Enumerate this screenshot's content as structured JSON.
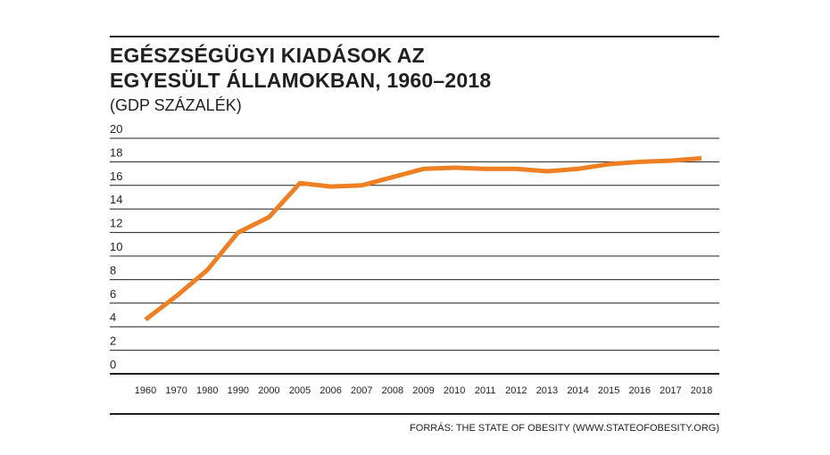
{
  "chart_data": {
    "type": "line",
    "title_lines": [
      "EGÉSZSÉGÜGYI KIADÁSOK AZ",
      "EGYESÜLT ÁLLAMOKBAN, 1960–2018"
    ],
    "subtitle": "(GDP SZÁZALÉK)",
    "categories": [
      "1960",
      "1970",
      "1980",
      "1990",
      "2000",
      "2005",
      "2006",
      "2007",
      "2008",
      "2009",
      "2010",
      "2011",
      "2012",
      "2013",
      "2014",
      "2015",
      "2016",
      "2017",
      "2018"
    ],
    "series": [
      {
        "values": [
          4.6,
          6.6,
          8.8,
          12.0,
          13.3,
          16.2,
          15.9,
          16.0,
          16.7,
          17.4,
          17.5,
          17.4,
          17.4,
          17.2,
          17.4,
          17.8,
          18.0,
          18.1,
          18.3
        ]
      }
    ],
    "yticks": [
      "0",
      "2",
      "4",
      "6",
      "8",
      "10",
      "12",
      "14",
      "16",
      "18",
      "20"
    ],
    "ylim": [
      0,
      20
    ],
    "grid": true,
    "line_color": "#ee7f22",
    "source": "FORRÁS: THE STATE OF OBESITY (WWW.STATEOFOBESITY.ORG)"
  }
}
